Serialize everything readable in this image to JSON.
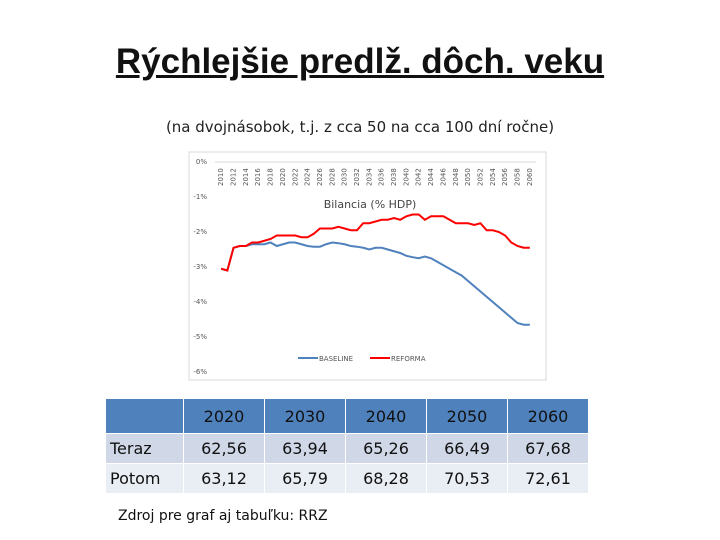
{
  "header": {
    "title": "Rýchlejšie predlž. dôch. veku",
    "subtitle": "(na dvojnásobok, t.j. z cca 50 na cca 100 dní ročne)"
  },
  "chart_data": {
    "type": "line",
    "title": "Bilancia (% HDP)",
    "x": [
      2010,
      2011,
      2012,
      2013,
      2014,
      2015,
      2016,
      2017,
      2018,
      2019,
      2020,
      2021,
      2022,
      2023,
      2024,
      2025,
      2026,
      2027,
      2028,
      2029,
      2030,
      2031,
      2032,
      2033,
      2034,
      2035,
      2036,
      2037,
      2038,
      2039,
      2040,
      2041,
      2042,
      2043,
      2044,
      2045,
      2046,
      2047,
      2048,
      2049,
      2050,
      2051,
      2052,
      2053,
      2054,
      2055,
      2056,
      2057,
      2058,
      2059,
      2060
    ],
    "xlim": [
      2009,
      2061
    ],
    "xticks": [
      2010,
      2012,
      2014,
      2016,
      2018,
      2020,
      2022,
      2024,
      2026,
      2028,
      2030,
      2032,
      2034,
      2036,
      2038,
      2040,
      2042,
      2044,
      2046,
      2048,
      2050,
      2052,
      2054,
      2056,
      2058,
      2060
    ],
    "ylim": [
      -6,
      0
    ],
    "yticks": [
      {
        "value": 0,
        "label": "0%"
      },
      {
        "value": -1,
        "label": "-1%"
      },
      {
        "value": -2,
        "label": "-2%"
      },
      {
        "value": -3,
        "label": "-3%"
      },
      {
        "value": -4,
        "label": "-4%"
      },
      {
        "value": -5,
        "label": "-5%"
      },
      {
        "value": -6,
        "label": "-6%"
      }
    ],
    "legend": "bottom",
    "series": [
      {
        "name": "BASELINE",
        "color": "#4f81bd",
        "values": [
          -3.05,
          -3.1,
          -2.45,
          -2.4,
          -2.4,
          -2.35,
          -2.35,
          -2.35,
          -2.3,
          -2.4,
          -2.35,
          -2.3,
          -2.3,
          -2.35,
          -2.4,
          -2.42,
          -2.42,
          -2.35,
          -2.3,
          -2.32,
          -2.35,
          -2.4,
          -2.42,
          -2.45,
          -2.5,
          -2.45,
          -2.45,
          -2.5,
          -2.55,
          -2.6,
          -2.68,
          -2.72,
          -2.75,
          -2.7,
          -2.75,
          -2.85,
          -2.95,
          -3.05,
          -3.15,
          -3.25,
          -3.4,
          -3.55,
          -3.7,
          -3.85,
          -4.0,
          -4.15,
          -4.3,
          -4.45,
          -4.6,
          -4.65,
          -4.65
        ]
      },
      {
        "name": "REFORMA",
        "color": "#ff0000",
        "values": [
          -3.05,
          -3.1,
          -2.45,
          -2.4,
          -2.4,
          -2.3,
          -2.3,
          -2.25,
          -2.2,
          -2.1,
          -2.1,
          -2.1,
          -2.1,
          -2.15,
          -2.15,
          -2.05,
          -1.9,
          -1.9,
          -1.9,
          -1.85,
          -1.9,
          -1.95,
          -1.95,
          -1.75,
          -1.75,
          -1.7,
          -1.65,
          -1.65,
          -1.6,
          -1.65,
          -1.55,
          -1.5,
          -1.5,
          -1.65,
          -1.55,
          -1.55,
          -1.55,
          -1.65,
          -1.75,
          -1.75,
          -1.75,
          -1.8,
          -1.75,
          -1.95,
          -1.95,
          -2.0,
          -2.1,
          -2.3,
          -2.4,
          -2.45,
          -2.45
        ]
      }
    ]
  },
  "table": {
    "header": [
      "2020",
      "2030",
      "2040",
      "2050",
      "2060"
    ],
    "rows": [
      {
        "label": "Teraz",
        "values": [
          "62,56",
          "63,94",
          "65,26",
          "66,49",
          "67,68"
        ]
      },
      {
        "label": "Potom",
        "values": [
          "63,12",
          "65,79",
          "68,28",
          "70,53",
          "72,61"
        ]
      }
    ]
  },
  "footer": {
    "source": "Zdroj pre graf aj tabuľku: RRZ"
  }
}
